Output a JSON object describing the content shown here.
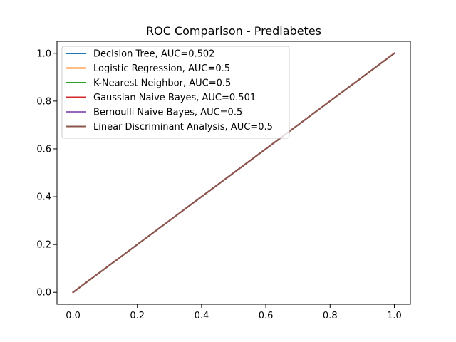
{
  "chart_data": {
    "type": "line",
    "title": "ROC Comparison - Prediabetes",
    "xlabel": "",
    "ylabel": "",
    "xlim": [
      -0.05,
      1.05
    ],
    "ylim": [
      -0.05,
      1.05
    ],
    "x_ticks": [
      0.0,
      0.2,
      0.4,
      0.6,
      0.8,
      1.0
    ],
    "x_tick_labels": [
      "0.0",
      "0.2",
      "0.4",
      "0.6",
      "0.8",
      "1.0"
    ],
    "y_ticks": [
      0.0,
      0.2,
      0.4,
      0.6,
      0.8,
      1.0
    ],
    "y_tick_labels": [
      "0.0",
      "0.2",
      "0.4",
      "0.6",
      "0.8",
      "1.0"
    ],
    "grid": false,
    "legend_position": "upper-left",
    "series": [
      {
        "name": "Decision Tree, AUC=0.502",
        "color": "#1f77b4",
        "x": [
          0.0,
          1.0
        ],
        "y": [
          0.0,
          1.0
        ]
      },
      {
        "name": "Logistic Regression, AUC=0.5",
        "color": "#ff7f0e",
        "x": [
          0.0,
          1.0
        ],
        "y": [
          0.0,
          1.0
        ]
      },
      {
        "name": "K-Nearest Neighbor, AUC=0.5",
        "color": "#2ca02c",
        "x": [
          0.0,
          1.0
        ],
        "y": [
          0.0,
          1.0
        ]
      },
      {
        "name": "Gaussian Naive Bayes, AUC=0.501",
        "color": "#d62728",
        "x": [
          0.0,
          1.0
        ],
        "y": [
          0.0,
          1.0
        ]
      },
      {
        "name": "Bernoulli Naive Bayes, AUC=0.5",
        "color": "#9467bd",
        "x": [
          0.0,
          1.0
        ],
        "y": [
          0.0,
          1.0
        ]
      },
      {
        "name": "Linear Discriminant Analysis, AUC=0.5",
        "color": "#8c564b",
        "x": [
          0.0,
          1.0
        ],
        "y": [
          0.0,
          1.0
        ]
      }
    ]
  }
}
